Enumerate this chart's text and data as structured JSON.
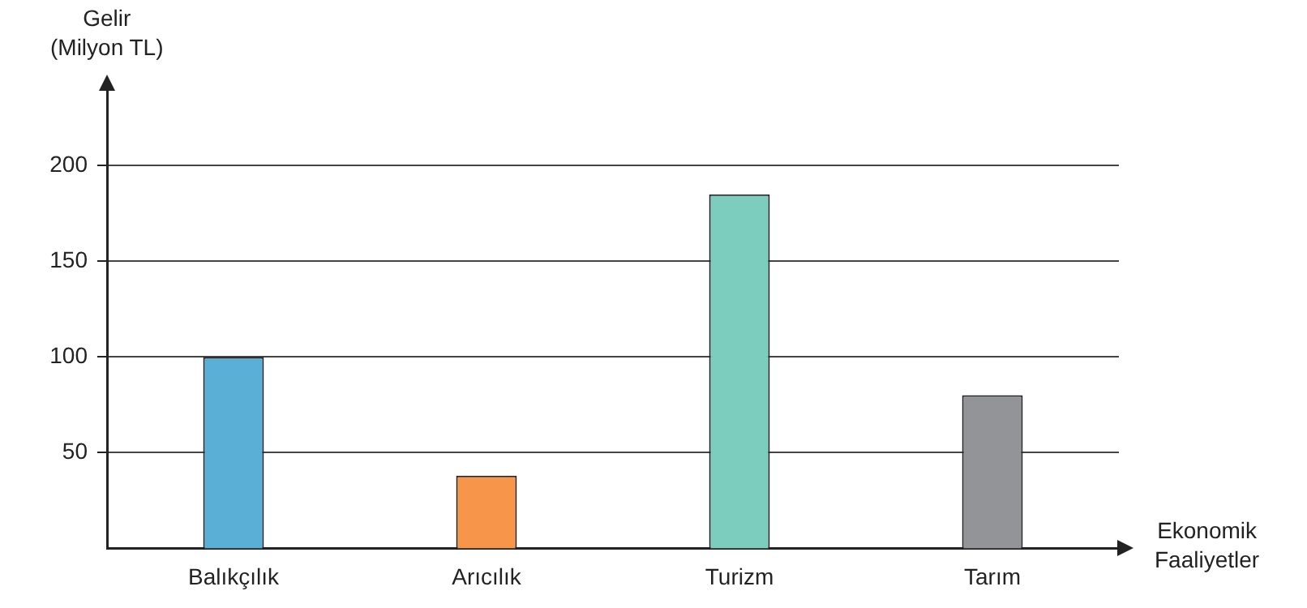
{
  "chart_data": {
    "type": "bar",
    "xlabel": "Ekonomik\nFaaliyetler",
    "ylabel": "Gelir\n(Milyon TL)",
    "categories": [
      "Balıkçılık",
      "Arıcılık",
      "Turizm",
      "Tarım"
    ],
    "values": [
      100,
      38,
      185,
      80
    ],
    "colors": [
      "#5aafd7",
      "#f7964b",
      "#7ccdbd",
      "#929497"
    ],
    "ylim": [
      0,
      240
    ],
    "yticks": [
      50,
      100,
      150,
      200
    ],
    "grid": "y",
    "legend": false
  }
}
